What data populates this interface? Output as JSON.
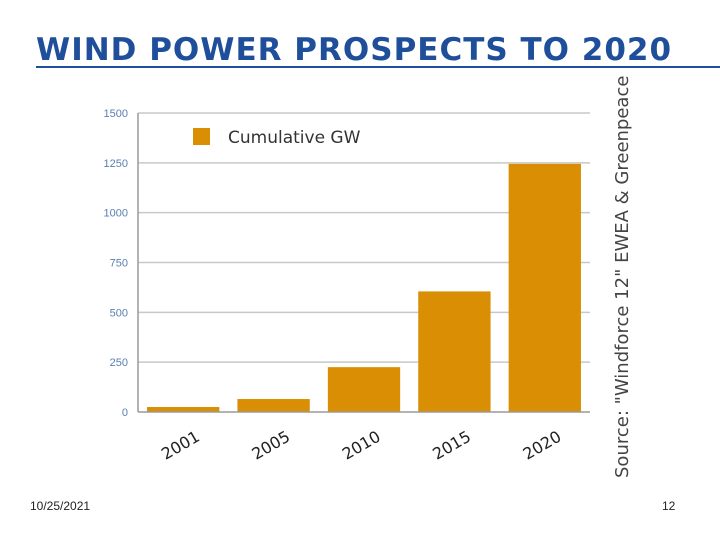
{
  "slide": {
    "title": "WIND POWER PROSPECTS TO 2020",
    "date": "10/25/2021",
    "page_number": "12",
    "source": "Source: \"Windforce 12\" EWEA & Greenpeace"
  },
  "colors": {
    "title": "#1f4f9a",
    "bar": "#d98e04",
    "grid": "#c8c8c8"
  },
  "chart_data": {
    "type": "bar",
    "title": "",
    "xlabel": "",
    "ylabel": "",
    "categories": [
      "2001",
      "2005",
      "2010",
      "2015",
      "2020"
    ],
    "series": [
      {
        "name": "Cumulative GW",
        "values": [
          25,
          65,
          225,
          605,
          1245
        ]
      }
    ],
    "ylim": [
      0,
      1500
    ],
    "yticks": [
      0,
      250,
      500,
      750,
      1000,
      1250,
      1500
    ],
    "grid": true,
    "legend_position": "top-left"
  }
}
